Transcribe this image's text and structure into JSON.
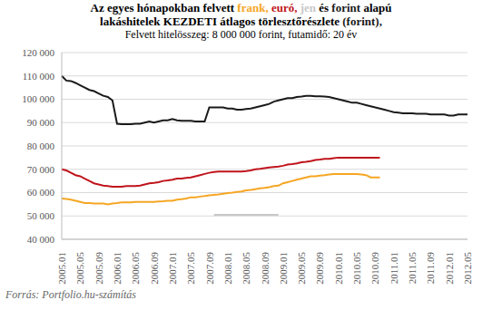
{
  "chart_data": {
    "type": "line",
    "title": "Az egyes hónapokban felvett frank, euró, jen és forint alapú lakáshitelek KEZDETI átlagos törlesztőrészlete (forint),",
    "subtitle": "Felvett hitelösszeg: 8 000 000 forint, futamidő: 20 év",
    "source": "Forrás: Portfolio.hu-számítás",
    "categories": [
      "2005.01",
      null,
      null,
      null,
      "2005.05",
      null,
      null,
      null,
      "2005.09",
      null,
      null,
      null,
      "2006.01",
      null,
      null,
      null,
      "2006.05",
      null,
      null,
      null,
      "2006.09",
      null,
      null,
      null,
      "2007.01",
      null,
      null,
      null,
      "2007.05",
      null,
      null,
      null,
      "2007.09",
      null,
      null,
      null,
      "2008.01",
      null,
      null,
      null,
      "2008.05",
      null,
      null,
      null,
      "2008.09",
      null,
      null,
      null,
      "2009.01",
      null,
      null,
      null,
      "2009.05",
      null,
      null,
      null,
      "2009.09",
      null,
      null,
      null,
      "2010.01",
      null,
      null,
      null,
      "2010.05",
      null,
      null,
      null,
      "2010.09",
      null,
      null,
      null,
      "2011.01",
      null,
      null,
      null,
      "2011.05",
      null,
      null,
      null,
      "2011.09",
      null,
      null,
      null,
      "2012.01",
      null,
      null,
      null,
      "2012.05"
    ],
    "series": [
      {
        "name": "frank",
        "color": "#f5a623",
        "values": [
          57500,
          57300,
          57000,
          56500,
          56000,
          55500,
          55500,
          55300,
          55300,
          55300,
          55000,
          55300,
          55500,
          55800,
          55800,
          55800,
          56000,
          56000,
          56000,
          56000,
          56000,
          56200,
          56300,
          56500,
          56500,
          57000,
          57200,
          57500,
          58000,
          58000,
          58300,
          58500,
          58800,
          59000,
          59200,
          59500,
          59800,
          60000,
          60300,
          60500,
          61000,
          61200,
          61500,
          61800,
          62000,
          62300,
          62800,
          63000,
          64000,
          64500,
          65000,
          65500,
          66000,
          66500,
          67000,
          67000,
          67300,
          67500,
          67800,
          68000,
          68000,
          68000,
          68000,
          68000,
          68000,
          67800,
          67500,
          66500,
          66500,
          66500,
          null,
          null,
          null,
          null,
          null,
          null,
          null,
          null,
          null,
          null,
          null,
          null,
          null,
          null,
          null,
          null,
          null,
          null,
          null
        ]
      },
      {
        "name": "euró",
        "color": "#c0141c",
        "values": [
          70000,
          69500,
          68500,
          67500,
          67000,
          66000,
          65000,
          64000,
          63500,
          63000,
          62800,
          62500,
          62500,
          62500,
          62800,
          62800,
          62800,
          63000,
          63500,
          64000,
          64200,
          64500,
          65000,
          65200,
          65500,
          66000,
          66000,
          66300,
          66500,
          67000,
          67500,
          68000,
          68500,
          68800,
          69000,
          69000,
          69000,
          69000,
          69000,
          69000,
          69200,
          69500,
          70000,
          70200,
          70500,
          70800,
          71000,
          71200,
          71500,
          72000,
          72200,
          72500,
          73000,
          73200,
          73500,
          74000,
          74200,
          74500,
          74500,
          74800,
          75000,
          75000,
          75000,
          75000,
          75000,
          75000,
          75000,
          75000,
          75000,
          75000,
          null,
          null,
          null,
          null,
          null,
          null,
          null,
          null,
          null,
          null,
          null,
          null,
          null,
          null,
          null,
          null,
          null,
          null,
          null
        ]
      },
      {
        "name": "jen",
        "color": "#c8c8c8",
        "values": [
          null,
          null,
          null,
          null,
          null,
          null,
          null,
          null,
          null,
          null,
          null,
          null,
          null,
          null,
          null,
          null,
          null,
          null,
          null,
          null,
          null,
          null,
          null,
          null,
          null,
          null,
          null,
          null,
          null,
          null,
          null,
          null,
          null,
          50500,
          50500,
          50500,
          50500,
          50500,
          50500,
          50500,
          50500,
          50500,
          50500,
          50500,
          50500,
          50500,
          50500,
          50500,
          null,
          null,
          null,
          null,
          null,
          null,
          null,
          null,
          null,
          null,
          null,
          null,
          null,
          null,
          null,
          null,
          null,
          null,
          null,
          null,
          null,
          null,
          null,
          null,
          null,
          null,
          null,
          null,
          null,
          null,
          null,
          null,
          null,
          null,
          null,
          null,
          null,
          null,
          null,
          null,
          null
        ]
      },
      {
        "name": "forint",
        "color": "#1a1a1a",
        "values": [
          110000,
          108000,
          107800,
          107000,
          106000,
          105000,
          104000,
          103500,
          102500,
          101500,
          101000,
          99500,
          89500,
          89300,
          89300,
          89300,
          89500,
          89500,
          90000,
          90500,
          90000,
          90500,
          91000,
          91000,
          91500,
          91000,
          90800,
          90800,
          90800,
          90500,
          90500,
          90500,
          96500,
          96500,
          96500,
          96500,
          96000,
          96000,
          95500,
          95500,
          95800,
          96000,
          96500,
          97000,
          97500,
          98000,
          99000,
          99500,
          100000,
          100500,
          100500,
          101000,
          101200,
          101500,
          101500,
          101300,
          101300,
          101200,
          101000,
          100500,
          100000,
          99500,
          99000,
          98500,
          98500,
          98000,
          97500,
          97000,
          96500,
          96000,
          95500,
          95000,
          94500,
          94300,
          94000,
          94000,
          94000,
          93800,
          93800,
          93800,
          93500,
          93500,
          93500,
          93500,
          93000,
          93000,
          93500,
          93500,
          93500
        ]
      }
    ],
    "ylim": [
      40000,
      120000
    ],
    "yticks": [
      {
        "value": 40000,
        "label": "40 000"
      },
      {
        "value": 50000,
        "label": "50 000"
      },
      {
        "value": 60000,
        "label": "60 000"
      },
      {
        "value": 70000,
        "label": "70 000"
      },
      {
        "value": 80000,
        "label": "80 000"
      },
      {
        "value": 90000,
        "label": "90 000"
      },
      {
        "value": 100000,
        "label": "100 000"
      },
      {
        "value": 110000,
        "label": "110 000"
      },
      {
        "value": 120000,
        "label": "120 000"
      }
    ],
    "grid": true,
    "marker": "none",
    "line_style": "solid"
  }
}
